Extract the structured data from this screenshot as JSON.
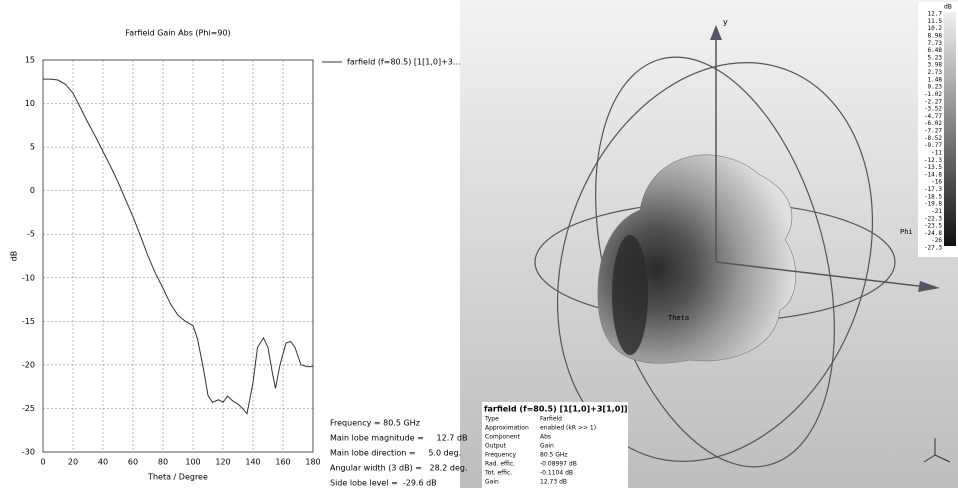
{
  "chart_data": {
    "type": "line",
    "title": "Farfield Gain Abs (Phi=90)",
    "x_label": "Theta / Degree",
    "y_label": "dB",
    "x": [
      0,
      5,
      10,
      15,
      20,
      25,
      30,
      35,
      40,
      45,
      50,
      55,
      60,
      65,
      70,
      75,
      80,
      85,
      90,
      95,
      100,
      103,
      107,
      110,
      113,
      117,
      120,
      123,
      127,
      130,
      133,
      136,
      140,
      143,
      147,
      150,
      153,
      155,
      158,
      162,
      165,
      168,
      172,
      176,
      180
    ],
    "series": [
      {
        "name": "farfield (f=80.5) [1[1,0]+3...",
        "color": "#333333",
        "values": [
          12.8,
          12.8,
          12.7,
          12.2,
          11.2,
          9.5,
          7.8,
          6.2,
          4.5,
          2.8,
          1.0,
          -1.0,
          -3.0,
          -5.2,
          -7.5,
          -9.5,
          -11.2,
          -13,
          -14.3,
          -15,
          -15.5,
          -17,
          -20.5,
          -23.5,
          -24.3,
          -24.0,
          -24.3,
          -23.6,
          -24.2,
          -24.5,
          -25.0,
          -25.6,
          -22,
          -18,
          -16.9,
          -18,
          -21,
          -22.7,
          -20,
          -17.5,
          -17.3,
          -18,
          -20,
          -20.2,
          -20.2
        ]
      }
    ],
    "xlim": [
      0,
      180
    ],
    "xticks": [
      0,
      20,
      40,
      60,
      80,
      100,
      120,
      140,
      160,
      180
    ],
    "ylim": [
      -30,
      15
    ],
    "yticks": [
      -30,
      -25,
      -20,
      -15,
      -10,
      -5,
      0,
      5,
      10,
      15
    ],
    "grid": true,
    "annotations": [
      "Frequency = 80.5 GHz",
      "Main lobe magnitude =     12.7 dB",
      "Main lobe direction =     5.0 deg.",
      "Angular width (3 dB) =   28.2 deg.",
      "Side lobe level =  -29.6 dB"
    ]
  },
  "farfield_3d": {
    "axis_labels": {
      "y": "y",
      "phi": "Phi",
      "theta": "Theta"
    },
    "colorbar": {
      "unit": "dB",
      "labels": [
        "12.7",
        "11.5",
        "10.2",
        "8.98",
        "7.73",
        "6.48",
        "5.23",
        "3.98",
        "2.73",
        "1.48",
        "0.23",
        "-1.02",
        "-2.27",
        "-3.52",
        "-4.77",
        "-6.02",
        "-7.27",
        "-8.52",
        "-9.77",
        "-11",
        "-12.3",
        "-13.5",
        "-14.8",
        "-16",
        "-17.3",
        "-18.5",
        "-19.8",
        "-21",
        "-22.3",
        "-23.5",
        "-24.8",
        "-26",
        "-27.3"
      ]
    },
    "info": {
      "title": "farfield (f=80.5) [1[1,0]+3[1,0]]",
      "rows": [
        [
          "Type",
          "Farfield"
        ],
        [
          "Approximation",
          "enabled (kR >> 1)"
        ],
        [
          "Component",
          "Abs"
        ],
        [
          "Output",
          "Gain"
        ],
        [
          "Frequency",
          "80.5 GHz"
        ],
        [
          "Rad. effic.",
          "-0.08997 dB"
        ],
        [
          "Tot. effic.",
          "-0.1104 dB"
        ],
        [
          "Gain",
          "12.73 dB"
        ]
      ]
    }
  }
}
